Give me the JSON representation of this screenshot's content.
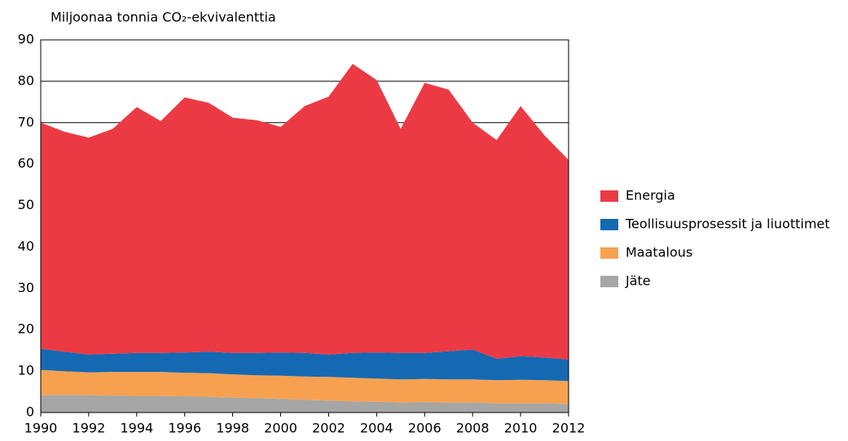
{
  "chart_data": {
    "type": "stacked_area",
    "title": "Miljoonaa tonnia CO₂-ekvivalenttia",
    "x": [
      1990,
      1991,
      1992,
      1993,
      1994,
      1995,
      1996,
      1997,
      1998,
      1999,
      2000,
      2001,
      2002,
      2003,
      2004,
      2005,
      2006,
      2007,
      2008,
      2009,
      2010,
      2011,
      2012
    ],
    "series": [
      {
        "name": "Jäte",
        "color": "#a6a6a6",
        "values": [
          4.2,
          4.2,
          4.2,
          4.1,
          4.0,
          4.0,
          3.9,
          3.8,
          3.6,
          3.5,
          3.3,
          3.1,
          2.9,
          2.7,
          2.6,
          2.4,
          2.5,
          2.4,
          2.4,
          2.2,
          2.2,
          2.2,
          2.1
        ]
      },
      {
        "name": "Maatalous",
        "color": "#f7a150",
        "values": [
          6.1,
          5.8,
          5.5,
          5.7,
          5.8,
          5.8,
          5.7,
          5.7,
          5.6,
          5.5,
          5.6,
          5.6,
          5.7,
          5.7,
          5.6,
          5.6,
          5.6,
          5.6,
          5.6,
          5.6,
          5.7,
          5.6,
          5.5
        ]
      },
      {
        "name": "Teollisuusprosessit ja liuottimet",
        "color": "#1569b3",
        "values": [
          5.1,
          4.7,
          4.3,
          4.4,
          4.6,
          4.6,
          4.9,
          5.2,
          5.2,
          5.4,
          5.6,
          5.7,
          5.4,
          6.0,
          6.3,
          6.4,
          6.3,
          6.8,
          7.2,
          5.2,
          5.7,
          5.5,
          5.2
        ]
      },
      {
        "name": "Energia",
        "color": "#ec3a44",
        "values": [
          54.6,
          53.1,
          52.4,
          54.3,
          59.4,
          56.0,
          61.6,
          60.1,
          56.8,
          56.2,
          54.5,
          59.6,
          62.3,
          69.8,
          65.8,
          54.1,
          65.2,
          63.2,
          54.8,
          52.8,
          60.4,
          53.6,
          48.2
        ]
      }
    ],
    "xlim": [
      1990,
      2012
    ],
    "xticks": [
      1990,
      1992,
      1994,
      1996,
      1998,
      2000,
      2002,
      2004,
      2006,
      2008,
      2010,
      2012
    ],
    "ylim": [
      0,
      90
    ],
    "yticks": [
      0,
      10,
      20,
      30,
      40,
      50,
      60,
      70,
      80,
      90
    ],
    "grid": true,
    "legend": "right"
  }
}
